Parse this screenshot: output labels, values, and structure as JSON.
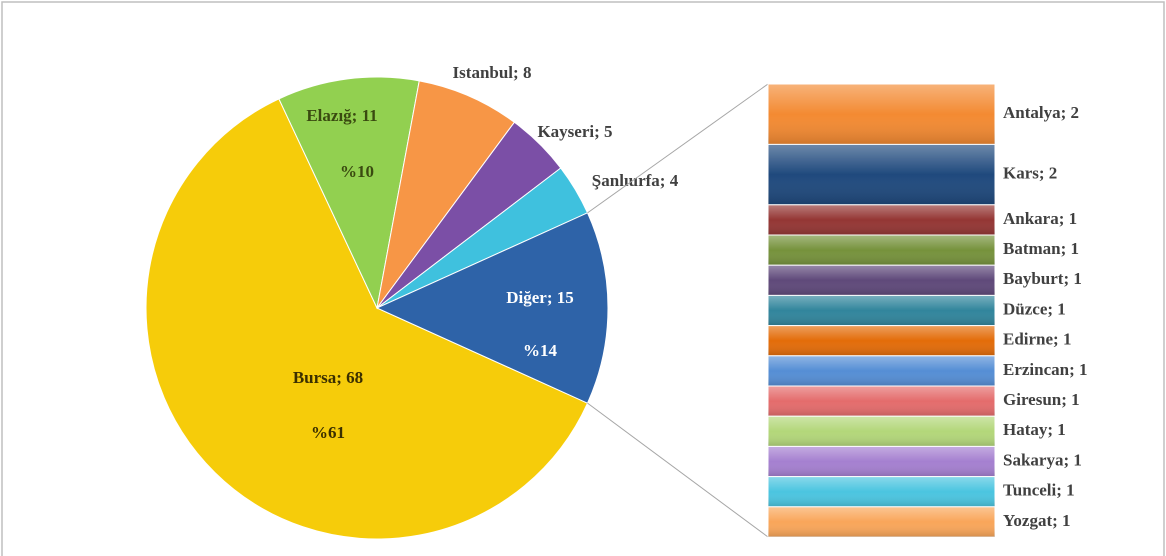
{
  "chart_data": [
    {
      "type": "pie",
      "categories": [
        "Bursa",
        "Elazığ",
        "Istanbul",
        "Kayseri",
        "Şanlıurfa",
        "Diğer"
      ],
      "values": [
        68,
        11,
        8,
        5,
        4,
        15
      ],
      "value_labels": [
        "Bursa; 68",
        "Elazığ; 11",
        "Istanbul; 8",
        "Kayseri; 5",
        "Şanlıurfa; 4",
        "Diğer; 15"
      ],
      "percent_labels": [
        "%61",
        "%10",
        null,
        null,
        null,
        "%14"
      ],
      "colors": [
        "#f6cc0a",
        "#92d050",
        "#f79646",
        "#7b4fa6",
        "#3fc1de",
        "#2e63a8"
      ]
    },
    {
      "type": "stacked-bar",
      "categories": [
        "Antalya",
        "Kars",
        "Ankara",
        "Batman",
        "Bayburt",
        "Düzce",
        "Edirne",
        "Erzincan",
        "Giresun",
        "Hatay",
        "Sakarya",
        "Tunceli",
        "Yozgat"
      ],
      "values": [
        2,
        2,
        1,
        1,
        1,
        1,
        1,
        1,
        1,
        1,
        1,
        1,
        1
      ],
      "value_labels": [
        "Antalya; 2",
        "Kars; 2",
        "Ankara; 1",
        "Batman; 1",
        "Bayburt; 1",
        "Düzce; 1",
        "Edirne; 1",
        "Erzincan; 1",
        "Giresun; 1",
        "Hatay; 1",
        "Sakarya; 1",
        "Tunceli; 1",
        "Yozgat; 1"
      ],
      "colors": [
        "#f38a32",
        "#1f497d",
        "#943634",
        "#76923c",
        "#5f497a",
        "#31859c",
        "#e36c09",
        "#558ed5",
        "#e46c6c",
        "#b3d77a",
        "#a580d0",
        "#4bc5e0",
        "#f9a65a"
      ]
    }
  ]
}
